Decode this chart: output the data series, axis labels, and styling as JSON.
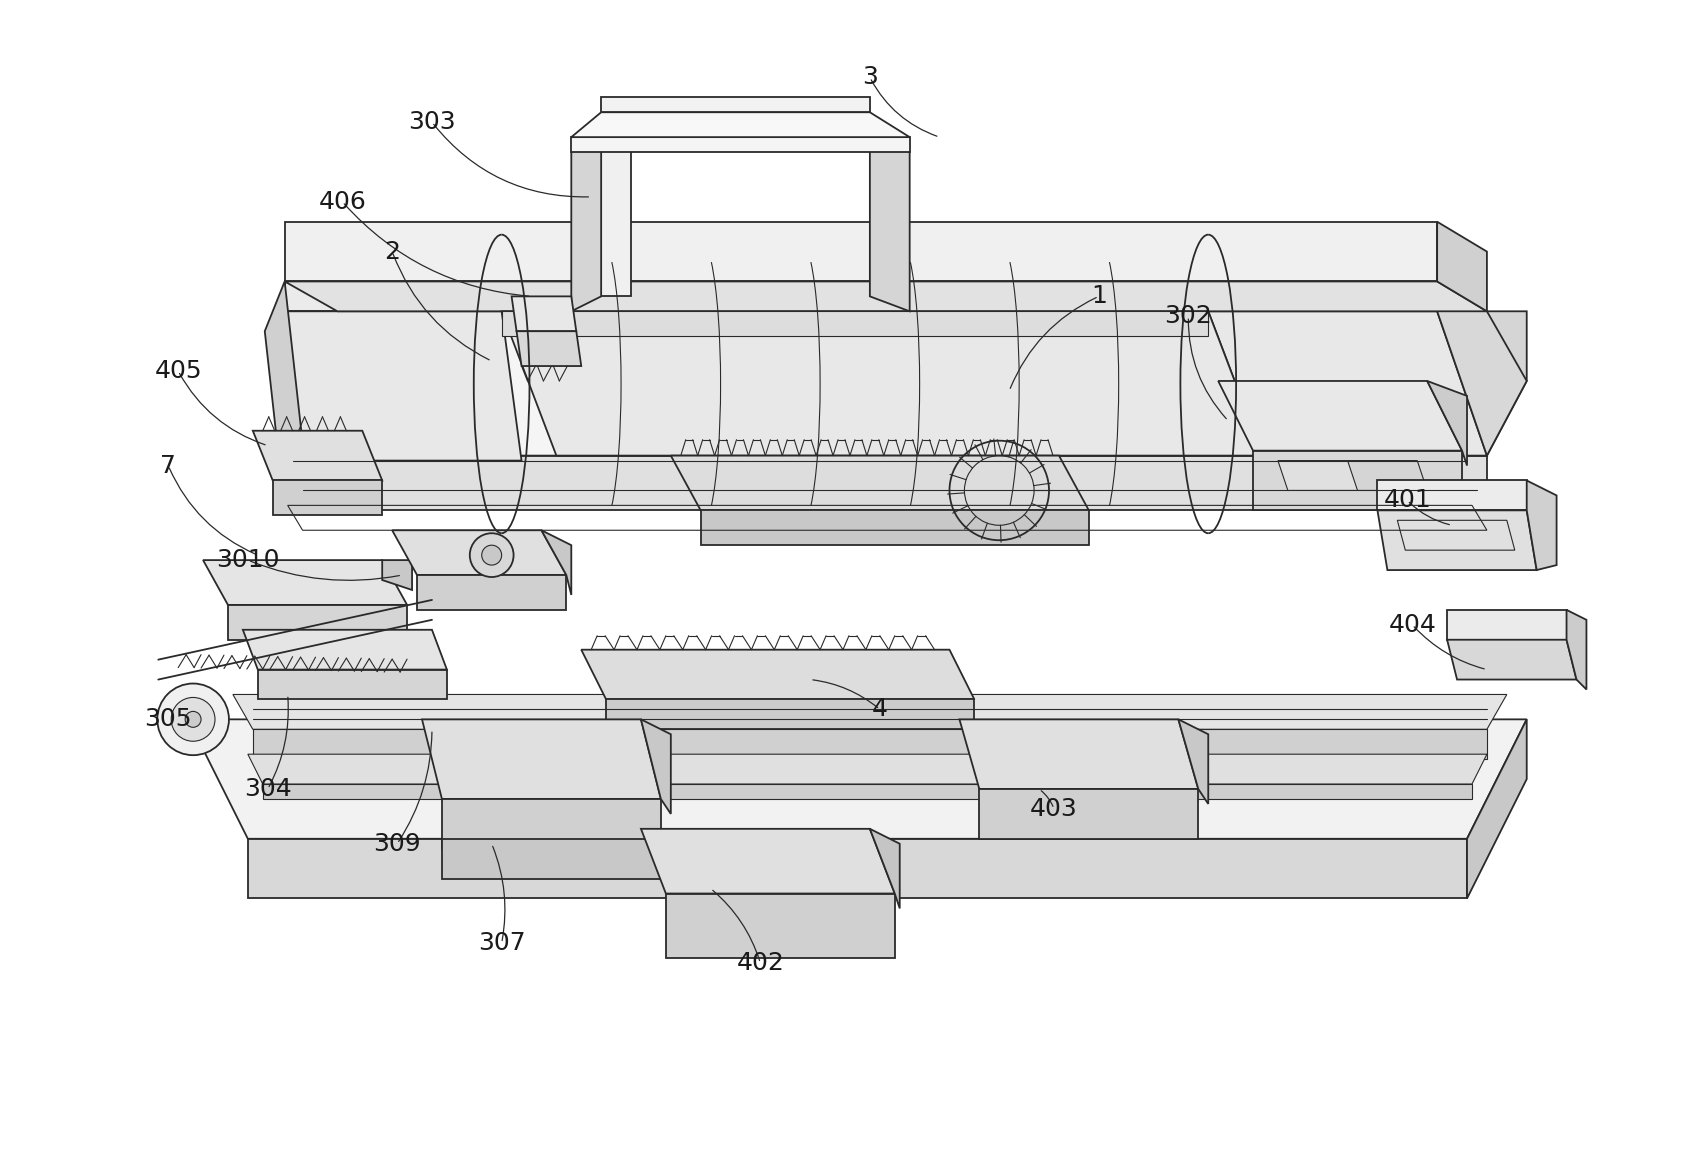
{
  "figure_width": 16.85,
  "figure_height": 11.67,
  "dpi": 100,
  "bg_color": "#ffffff",
  "lc": "#2a2a2a",
  "lw": 1.3,
  "tlw": 0.8,
  "annotations": [
    [
      "3",
      870,
      75,
      940,
      135,
      0.2
    ],
    [
      "303",
      430,
      120,
      590,
      195,
      0.25
    ],
    [
      "406",
      340,
      200,
      530,
      295,
      0.2
    ],
    [
      "2",
      390,
      250,
      490,
      360,
      0.2
    ],
    [
      "405",
      175,
      370,
      265,
      445,
      0.2
    ],
    [
      "1",
      1100,
      295,
      1010,
      390,
      0.2
    ],
    [
      "302",
      1190,
      315,
      1230,
      420,
      0.2
    ],
    [
      "7",
      165,
      465,
      255,
      555,
      0.2
    ],
    [
      "3010",
      245,
      560,
      400,
      575,
      0.15
    ],
    [
      "305",
      165,
      720,
      200,
      690,
      0.15
    ],
    [
      "304",
      265,
      790,
      285,
      695,
      0.15
    ],
    [
      "309",
      395,
      845,
      430,
      730,
      0.15
    ],
    [
      "307",
      500,
      945,
      490,
      845,
      0.15
    ],
    [
      "402",
      760,
      965,
      710,
      890,
      0.15
    ],
    [
      "4",
      880,
      710,
      810,
      680,
      0.15
    ],
    [
      "403",
      1055,
      810,
      1040,
      790,
      0.15
    ],
    [
      "401",
      1410,
      500,
      1455,
      525,
      0.15
    ],
    [
      "404",
      1415,
      625,
      1490,
      670,
      0.15
    ]
  ]
}
